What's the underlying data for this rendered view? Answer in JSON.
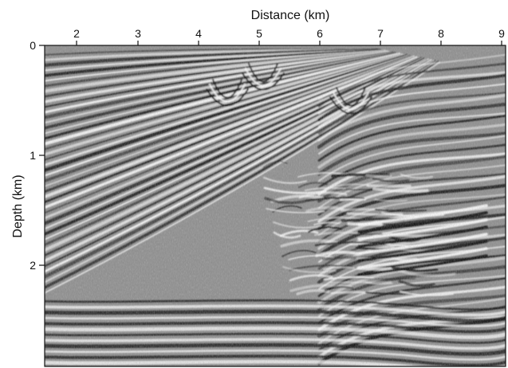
{
  "figure": {
    "x_axis": {
      "label": "Distance (km)",
      "ticks": [
        "2",
        "3",
        "4",
        "5",
        "6",
        "7",
        "8",
        "9"
      ],
      "tick_values": [
        2,
        3,
        4,
        5,
        6,
        7,
        8,
        9
      ],
      "range": [
        1.5,
        9.05
      ]
    },
    "y_axis": {
      "label": "Depth (km)",
      "ticks": [
        "0",
        "1",
        "2"
      ],
      "tick_values": [
        0,
        1,
        2
      ],
      "range": [
        0,
        2.95
      ],
      "inverted": true
    }
  },
  "colors": {
    "background_gray": "#8c8c8c",
    "peak": "#ffffff",
    "trough": "#000000",
    "axis": "#111111"
  }
}
